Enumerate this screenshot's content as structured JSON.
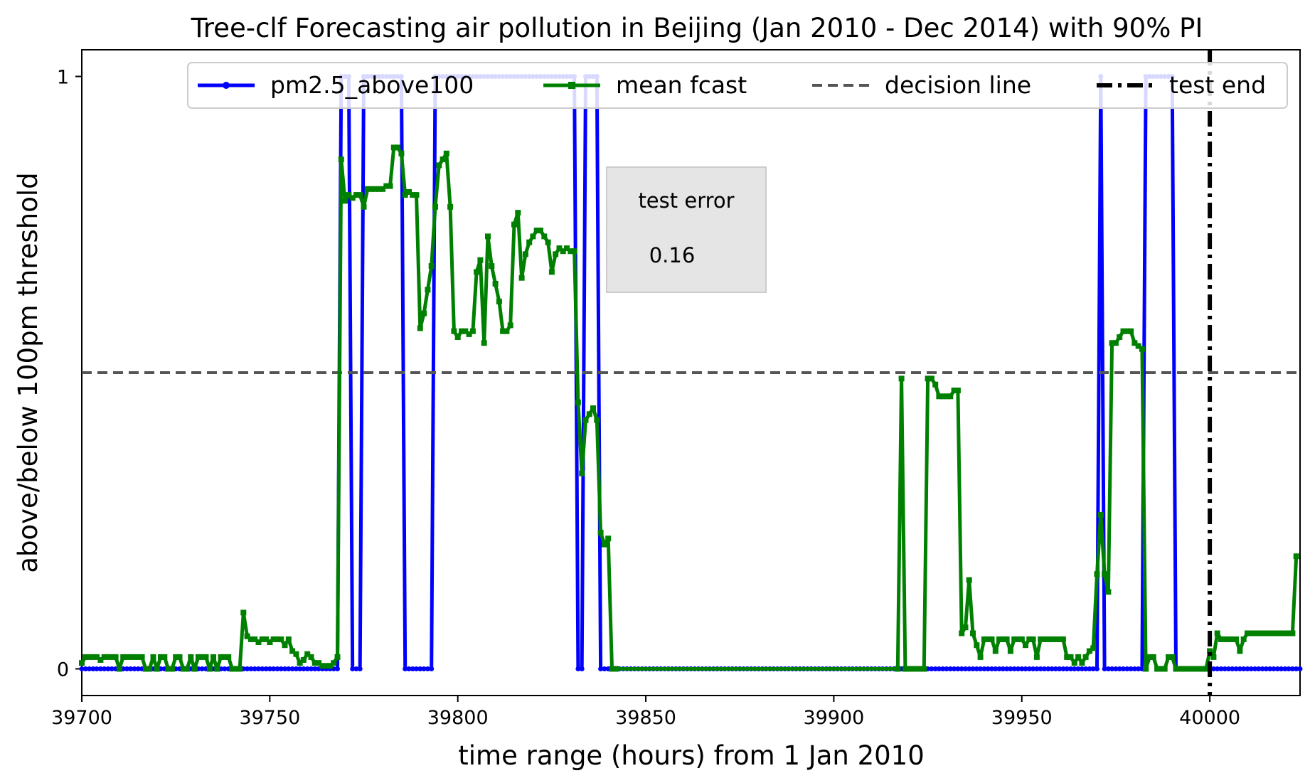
{
  "chart_data": {
    "type": "line",
    "title": "Tree-clf Forecasting air pollution in Beijing (Jan 2010 - Dec 2014) with 90% PI",
    "xlabel": "time range (hours) from 1 Jan 2010",
    "ylabel": "above/below 100pm threshold",
    "xlim": [
      39700,
      40024
    ],
    "ylim": [
      -0.045,
      1.045
    ],
    "xticks": [
      39700,
      39750,
      39800,
      39850,
      39900,
      39950,
      40000
    ],
    "yticks": [
      0,
      1
    ],
    "legend": {
      "placement": "top-center",
      "columns": 4
    },
    "series": [
      {
        "name": "pm2.5_above100",
        "color": "#0000ff",
        "marker": "circle",
        "segments": [
          [
            39700,
            0
          ],
          [
            39768,
            0
          ],
          [
            39769,
            1
          ],
          [
            39771,
            1
          ],
          [
            39772,
            0
          ],
          [
            39774,
            0
          ],
          [
            39775,
            1
          ],
          [
            39785,
            1
          ],
          [
            39786,
            0
          ],
          [
            39793,
            0
          ],
          [
            39794,
            1
          ],
          [
            39831,
            1
          ],
          [
            39832,
            0
          ],
          [
            39833,
            0
          ],
          [
            39834,
            1
          ],
          [
            39837,
            1
          ],
          [
            39838,
            0
          ],
          [
            39970,
            0
          ],
          [
            39971,
            1
          ],
          [
            39972,
            0
          ],
          [
            39982,
            0
          ],
          [
            39983,
            1
          ],
          [
            39990,
            1
          ],
          [
            39991,
            0
          ],
          [
            40024,
            0
          ]
        ]
      },
      {
        "name": "mean fcast",
        "color": "#008000",
        "marker": "square",
        "points": [
          [
            39700,
            0.01
          ],
          [
            39701,
            0.02
          ],
          [
            39702,
            0.02
          ],
          [
            39703,
            0.02
          ],
          [
            39704,
            0.02
          ],
          [
            39705,
            0.015
          ],
          [
            39706,
            0.02
          ],
          [
            39707,
            0.02
          ],
          [
            39708,
            0.02
          ],
          [
            39709,
            0.02
          ],
          [
            39710,
            0.0
          ],
          [
            39711,
            0.02
          ],
          [
            39712,
            0.02
          ],
          [
            39713,
            0.02
          ],
          [
            39714,
            0.02
          ],
          [
            39715,
            0.02
          ],
          [
            39716,
            0.02
          ],
          [
            39717,
            0.0
          ],
          [
            39718,
            0.0
          ],
          [
            39719,
            0.02
          ],
          [
            39720,
            0.0
          ],
          [
            39721,
            0.02
          ],
          [
            39722,
            0.02
          ],
          [
            39723,
            0.0
          ],
          [
            39724,
            0.0
          ],
          [
            39725,
            0.02
          ],
          [
            39726,
            0.02
          ],
          [
            39727,
            0.0
          ],
          [
            39728,
            0.0
          ],
          [
            39729,
            0.02
          ],
          [
            39730,
            0.0
          ],
          [
            39731,
            0.02
          ],
          [
            39732,
            0.02
          ],
          [
            39733,
            0.02
          ],
          [
            39734,
            0.0
          ],
          [
            39735,
            0.02
          ],
          [
            39736,
            0.0
          ],
          [
            39737,
            0.02
          ],
          [
            39738,
            0.02
          ],
          [
            39739,
            0.02
          ],
          [
            39740,
            0.0
          ],
          [
            39741,
            0.0
          ],
          [
            39742,
            0.0
          ],
          [
            39743,
            0.095
          ],
          [
            39744,
            0.055
          ],
          [
            39745,
            0.05
          ],
          [
            39746,
            0.05
          ],
          [
            39747,
            0.045
          ],
          [
            39748,
            0.05
          ],
          [
            39749,
            0.05
          ],
          [
            39750,
            0.045
          ],
          [
            39751,
            0.05
          ],
          [
            39752,
            0.05
          ],
          [
            39753,
            0.05
          ],
          [
            39754,
            0.04
          ],
          [
            39755,
            0.05
          ],
          [
            39756,
            0.03
          ],
          [
            39757,
            0.025
          ],
          [
            39758,
            0.01
          ],
          [
            39759,
            0.015
          ],
          [
            39760,
            0.025
          ],
          [
            39761,
            0.02
          ],
          [
            39762,
            0.01
          ],
          [
            39763,
            0.01
          ],
          [
            39764,
            0.005
          ],
          [
            39765,
            0.005
          ],
          [
            39766,
            0.005
          ],
          [
            39767,
            0.01
          ],
          [
            39768,
            0.02
          ],
          [
            39769,
            0.86
          ],
          [
            39770,
            0.79
          ],
          [
            39771,
            0.8
          ],
          [
            39772,
            0.795
          ],
          [
            39773,
            0.8
          ],
          [
            39774,
            0.8
          ],
          [
            39775,
            0.78
          ],
          [
            39776,
            0.81
          ],
          [
            39777,
            0.81
          ],
          [
            39778,
            0.81
          ],
          [
            39779,
            0.81
          ],
          [
            39780,
            0.81
          ],
          [
            39781,
            0.815
          ],
          [
            39782,
            0.815
          ],
          [
            39783,
            0.88
          ],
          [
            39784,
            0.88
          ],
          [
            39785,
            0.87
          ],
          [
            39786,
            0.8
          ],
          [
            39787,
            0.805
          ],
          [
            39788,
            0.8
          ],
          [
            39789,
            0.8
          ],
          [
            39790,
            0.575
          ],
          [
            39791,
            0.6
          ],
          [
            39792,
            0.64
          ],
          [
            39793,
            0.68
          ],
          [
            39794,
            0.78
          ],
          [
            39795,
            0.85
          ],
          [
            39796,
            0.86
          ],
          [
            39797,
            0.87
          ],
          [
            39798,
            0.78
          ],
          [
            39799,
            0.57
          ],
          [
            39800,
            0.56
          ],
          [
            39801,
            0.57
          ],
          [
            39802,
            0.57
          ],
          [
            39803,
            0.565
          ],
          [
            39804,
            0.57
          ],
          [
            39805,
            0.67
          ],
          [
            39806,
            0.69
          ],
          [
            39807,
            0.55
          ],
          [
            39808,
            0.73
          ],
          [
            39809,
            0.68
          ],
          [
            39810,
            0.65
          ],
          [
            39811,
            0.62
          ],
          [
            39812,
            0.57
          ],
          [
            39813,
            0.57
          ],
          [
            39814,
            0.58
          ],
          [
            39815,
            0.75
          ],
          [
            39816,
            0.77
          ],
          [
            39817,
            0.66
          ],
          [
            39818,
            0.7
          ],
          [
            39819,
            0.72
          ],
          [
            39820,
            0.73
          ],
          [
            39821,
            0.74
          ],
          [
            39822,
            0.74
          ],
          [
            39823,
            0.73
          ],
          [
            39824,
            0.72
          ],
          [
            39825,
            0.67
          ],
          [
            39826,
            0.7
          ],
          [
            39827,
            0.71
          ],
          [
            39828,
            0.705
          ],
          [
            39829,
            0.71
          ],
          [
            39830,
            0.705
          ],
          [
            39831,
            0.705
          ],
          [
            39832,
            0.45
          ],
          [
            39833,
            0.33
          ],
          [
            39834,
            0.42
          ],
          [
            39835,
            0.43
          ],
          [
            39836,
            0.44
          ],
          [
            39837,
            0.42
          ],
          [
            39838,
            0.23
          ],
          [
            39839,
            0.21
          ],
          [
            39840,
            0.22
          ],
          [
            39841,
            0.0
          ],
          [
            39842,
            0.0
          ],
          [
            39917,
            0.0
          ],
          [
            39918,
            0.49
          ],
          [
            39919,
            0.0
          ],
          [
            39920,
            0.0
          ],
          [
            39921,
            0.0
          ],
          [
            39922,
            0.0
          ],
          [
            39923,
            0.0
          ],
          [
            39924,
            0.0
          ],
          [
            39925,
            0.49
          ],
          [
            39926,
            0.49
          ],
          [
            39927,
            0.48
          ],
          [
            39928,
            0.46
          ],
          [
            39929,
            0.46
          ],
          [
            39930,
            0.46
          ],
          [
            39931,
            0.46
          ],
          [
            39932,
            0.47
          ],
          [
            39933,
            0.47
          ],
          [
            39934,
            0.06
          ],
          [
            39935,
            0.07
          ],
          [
            39936,
            0.15
          ],
          [
            39937,
            0.06
          ],
          [
            39938,
            0.04
          ],
          [
            39939,
            0.02
          ],
          [
            39940,
            0.05
          ],
          [
            39941,
            0.05
          ],
          [
            39942,
            0.05
          ],
          [
            39943,
            0.03
          ],
          [
            39944,
            0.05
          ],
          [
            39945,
            0.05
          ],
          [
            39946,
            0.05
          ],
          [
            39947,
            0.03
          ],
          [
            39948,
            0.05
          ],
          [
            39949,
            0.05
          ],
          [
            39950,
            0.05
          ],
          [
            39951,
            0.04
          ],
          [
            39952,
            0.05
          ],
          [
            39953,
            0.05
          ],
          [
            39954,
            0.02
          ],
          [
            39955,
            0.05
          ],
          [
            39956,
            0.05
          ],
          [
            39957,
            0.05
          ],
          [
            39958,
            0.05
          ],
          [
            39959,
            0.05
          ],
          [
            39960,
            0.05
          ],
          [
            39961,
            0.05
          ],
          [
            39962,
            0.02
          ],
          [
            39963,
            0.02
          ],
          [
            39964,
            0.01
          ],
          [
            39965,
            0.02
          ],
          [
            39966,
            0.01
          ],
          [
            39967,
            0.02
          ],
          [
            39968,
            0.03
          ],
          [
            39969,
            0.035
          ],
          [
            39970,
            0.16
          ],
          [
            39971,
            0.26
          ],
          [
            39972,
            0.16
          ],
          [
            39973,
            0.13
          ],
          [
            39974,
            0.55
          ],
          [
            39975,
            0.55
          ],
          [
            39976,
            0.56
          ],
          [
            39977,
            0.57
          ],
          [
            39978,
            0.57
          ],
          [
            39979,
            0.57
          ],
          [
            39980,
            0.55
          ],
          [
            39981,
            0.545
          ],
          [
            39982,
            0.54
          ],
          [
            39983,
            0.0
          ],
          [
            39984,
            0.02
          ],
          [
            39985,
            0.02
          ],
          [
            39986,
            0.0
          ],
          [
            39987,
            0.0
          ],
          [
            39988,
            0.0
          ],
          [
            39989,
            0.02
          ],
          [
            39990,
            0.02
          ],
          [
            39991,
            0.0
          ],
          [
            39992,
            0.0
          ],
          [
            39993,
            0.0
          ],
          [
            39994,
            0.0
          ],
          [
            39995,
            0.0
          ],
          [
            39996,
            0.0
          ],
          [
            39997,
            0.0
          ],
          [
            39998,
            0.0
          ],
          [
            39999,
            0.0
          ],
          [
            40000,
            0.03
          ],
          [
            40001,
            0.02
          ],
          [
            40002,
            0.06
          ],
          [
            40003,
            0.05
          ],
          [
            40004,
            0.05
          ],
          [
            40005,
            0.05
          ],
          [
            40006,
            0.05
          ],
          [
            40007,
            0.05
          ],
          [
            40008,
            0.03
          ],
          [
            40009,
            0.05
          ],
          [
            40010,
            0.06
          ],
          [
            40011,
            0.06
          ],
          [
            40012,
            0.06
          ],
          [
            40013,
            0.06
          ],
          [
            40014,
            0.06
          ],
          [
            40015,
            0.06
          ],
          [
            40016,
            0.06
          ],
          [
            40017,
            0.06
          ],
          [
            40018,
            0.06
          ],
          [
            40019,
            0.06
          ],
          [
            40020,
            0.06
          ],
          [
            40021,
            0.06
          ],
          [
            40022,
            0.06
          ],
          [
            40023,
            0.19
          ]
        ]
      },
      {
        "name": "decision line",
        "color": "#555555",
        "style": "dashed",
        "y": 0.5
      },
      {
        "name": "test end",
        "color": "#000000",
        "style": "dash-dot",
        "x": 40000
      }
    ],
    "annotation_box": {
      "label": "test error",
      "value": "0.16"
    }
  }
}
